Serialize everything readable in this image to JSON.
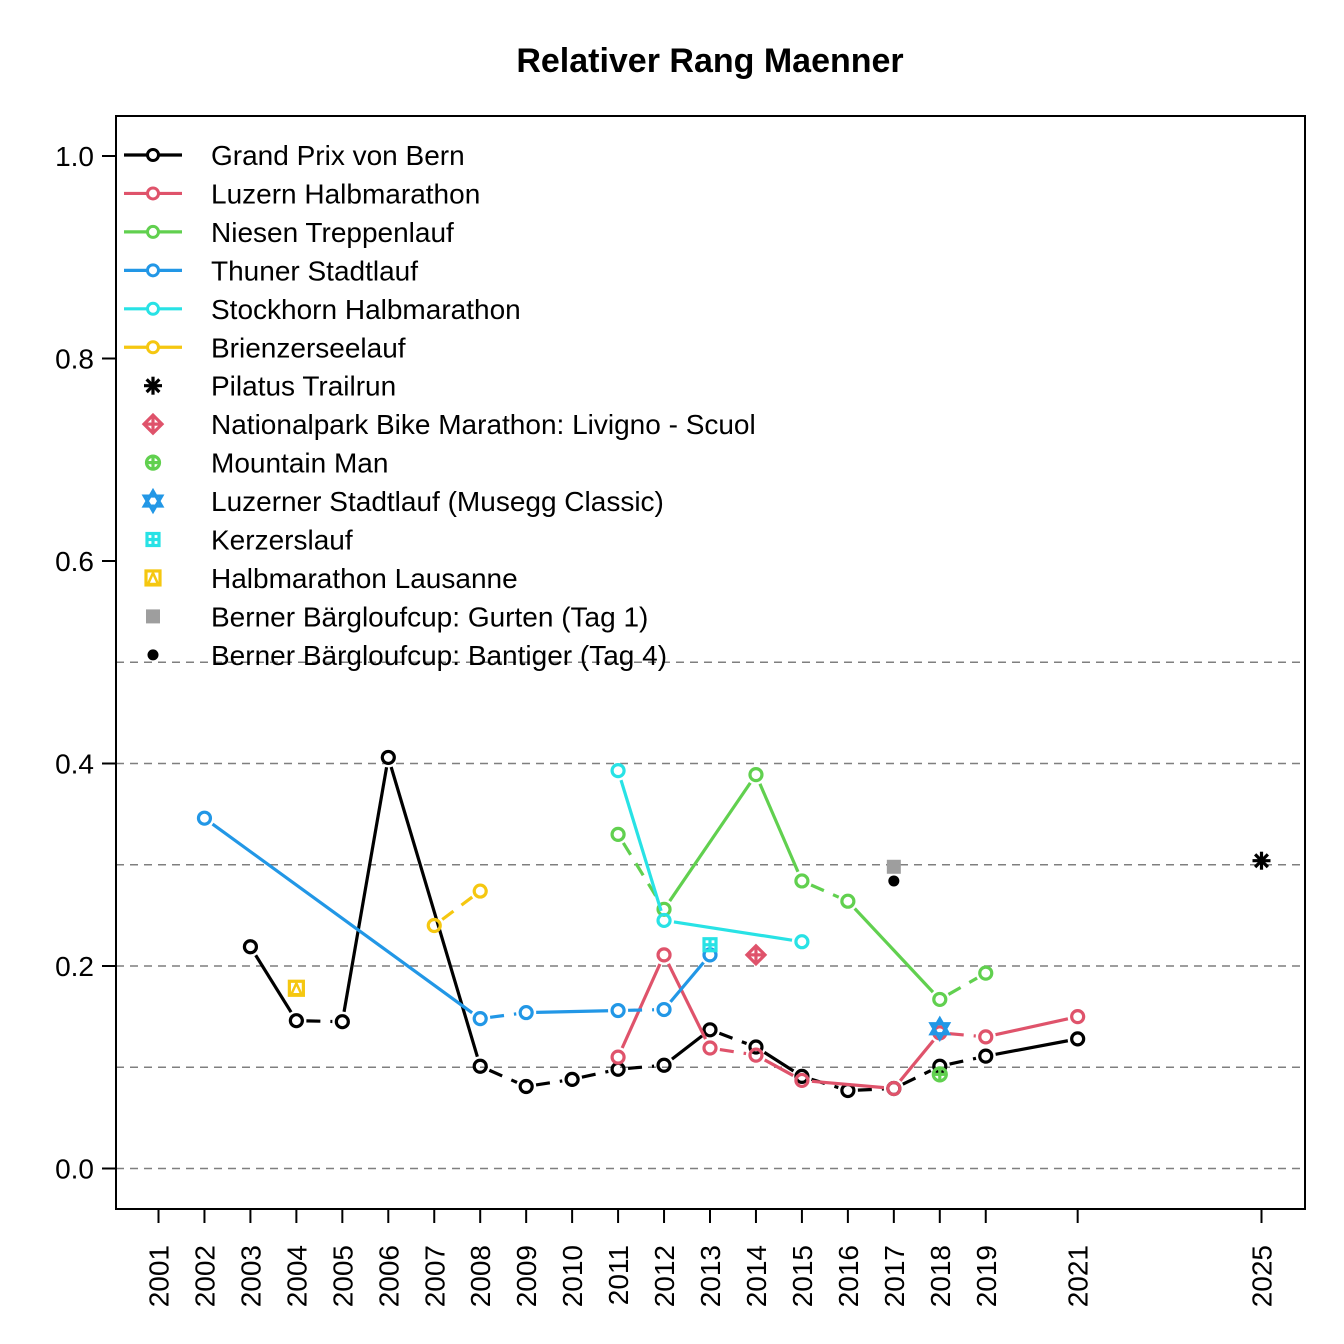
{
  "chart_data": {
    "type": "line",
    "title": "Relativer Rang Maenner",
    "xlabel": "",
    "ylabel": "",
    "ylim": [
      -0.03,
      1.05
    ],
    "y_ticks": [
      0.0,
      0.2,
      0.4,
      0.6,
      0.8,
      1.0
    ],
    "y_tick_labels": [
      "0.0",
      "0.2",
      "0.4",
      "0.6",
      "0.8",
      "1.0"
    ],
    "x_ticks": [
      2001,
      2002,
      2003,
      2004,
      2005,
      2006,
      2007,
      2008,
      2009,
      2010,
      2011,
      2012,
      2013,
      2014,
      2015,
      2016,
      2017,
      2018,
      2019,
      2021,
      2025
    ],
    "xlim": [
      2000.05,
      2026
    ],
    "gridlines_y": [
      0.0,
      0.1,
      0.2,
      0.3,
      0.4,
      0.5
    ],
    "legend_position": "top-left",
    "series": [
      {
        "name": "Grand Prix von Bern",
        "color": "#000000",
        "marker": "circle-open",
        "points": [
          [
            2003,
            0.219
          ],
          [
            2004,
            0.146
          ],
          [
            2005,
            0.145
          ],
          [
            2006,
            0.406
          ],
          [
            2008,
            0.101
          ],
          [
            2009,
            0.081
          ],
          [
            2010,
            0.088
          ],
          [
            2011,
            0.098
          ],
          [
            2012,
            0.102
          ],
          [
            2013,
            0.137
          ],
          [
            2014,
            0.12
          ],
          [
            2015,
            0.091
          ],
          [
            2016,
            0.077
          ],
          [
            2017,
            0.079
          ],
          [
            2018,
            0.101
          ],
          [
            2019,
            0.111
          ],
          [
            2021,
            0.128
          ]
        ],
        "segments": [
          [
            2003,
            2004,
            "solid"
          ],
          [
            2004,
            2005,
            "dashed"
          ],
          [
            2005,
            2006,
            "solid"
          ],
          [
            2006,
            2008,
            "solid"
          ],
          [
            2008,
            2009,
            "dashed"
          ],
          [
            2009,
            2010,
            "dashed"
          ],
          [
            2010,
            2011,
            "dashed"
          ],
          [
            2011,
            2012,
            "dashed"
          ],
          [
            2012,
            2013,
            "solid"
          ],
          [
            2013,
            2014,
            "dashed"
          ],
          [
            2014,
            2015,
            "solid"
          ],
          [
            2015,
            2016,
            "dashed"
          ],
          [
            2016,
            2017,
            "dashed"
          ],
          [
            2017,
            2018,
            "dashed"
          ],
          [
            2018,
            2019,
            "dashed"
          ],
          [
            2019,
            2021,
            "solid"
          ]
        ]
      },
      {
        "name": "Luzern Halbmarathon",
        "color": "#DF536B",
        "marker": "circle-open",
        "points": [
          [
            2011,
            0.11
          ],
          [
            2012,
            0.211
          ],
          [
            2013,
            0.119
          ],
          [
            2014,
            0.112
          ],
          [
            2015,
            0.087
          ],
          [
            2017,
            0.079
          ],
          [
            2018,
            0.134
          ],
          [
            2019,
            0.13
          ],
          [
            2021,
            0.15
          ]
        ],
        "segments": [
          [
            2011,
            2012,
            "solid"
          ],
          [
            2012,
            2013,
            "solid"
          ],
          [
            2013,
            2014,
            "dashed"
          ],
          [
            2014,
            2015,
            "solid"
          ],
          [
            2015,
            2017,
            "solid"
          ],
          [
            2017,
            2018,
            "solid"
          ],
          [
            2018,
            2019,
            "dashed"
          ],
          [
            2019,
            2021,
            "solid"
          ]
        ]
      },
      {
        "name": "Niesen Treppenlauf",
        "color": "#61D04F",
        "marker": "circle-open",
        "points": [
          [
            2011,
            0.33
          ],
          [
            2012,
            0.256
          ],
          [
            2014,
            0.389
          ],
          [
            2015,
            0.284
          ],
          [
            2016,
            0.264
          ],
          [
            2018,
            0.167
          ],
          [
            2019,
            0.193
          ]
        ],
        "segments": [
          [
            2011,
            2012,
            "dashed"
          ],
          [
            2012,
            2014,
            "solid"
          ],
          [
            2014,
            2015,
            "solid"
          ],
          [
            2015,
            2016,
            "dashed"
          ],
          [
            2016,
            2018,
            "solid"
          ],
          [
            2018,
            2019,
            "dashed"
          ]
        ]
      },
      {
        "name": "Thuner Stadtlauf",
        "color": "#2297E6",
        "marker": "circle-open",
        "points": [
          [
            2002,
            0.346
          ],
          [
            2008,
            0.148
          ],
          [
            2009,
            0.154
          ],
          [
            2011,
            0.156
          ],
          [
            2012,
            0.157
          ],
          [
            2013,
            0.211
          ]
        ],
        "segments": [
          [
            2002,
            2008,
            "solid"
          ],
          [
            2008,
            2009,
            "dashed"
          ],
          [
            2009,
            2011,
            "solid"
          ],
          [
            2011,
            2012,
            "dashed"
          ],
          [
            2012,
            2013,
            "solid"
          ]
        ]
      },
      {
        "name": "Stockhorn Halbmarathon",
        "color": "#28E2E5",
        "marker": "circle-open",
        "points": [
          [
            2011,
            0.393
          ],
          [
            2012,
            0.245
          ],
          [
            2015,
            0.224
          ]
        ],
        "segments": [
          [
            2011,
            2012,
            "solid"
          ],
          [
            2012,
            2015,
            "solid"
          ]
        ]
      },
      {
        "name": "Brienzerseelauf",
        "color": "#F5C710",
        "marker": "circle-open",
        "points": [
          [
            2007,
            0.24
          ],
          [
            2008,
            0.274
          ]
        ],
        "segments": [
          [
            2007,
            2008,
            "dashed"
          ]
        ]
      },
      {
        "name": "Pilatus Trailrun",
        "color": "#000000",
        "marker": "asterisk",
        "points": [
          [
            2025,
            0.304
          ]
        ],
        "segments": []
      },
      {
        "name": "Nationalpark Bike Marathon: Livigno - Scuol",
        "color": "#DF536B",
        "marker": "diamond-plus",
        "points": [
          [
            2014,
            0.211
          ]
        ],
        "segments": []
      },
      {
        "name": "Mountain Man",
        "color": "#61D04F",
        "marker": "circle-plus",
        "points": [
          [
            2018,
            0.093
          ]
        ],
        "segments": []
      },
      {
        "name": "Luzerner Stadtlauf (Musegg Classic)",
        "color": "#2297E6",
        "marker": "star-of-david",
        "points": [
          [
            2018,
            0.138
          ]
        ],
        "segments": []
      },
      {
        "name": "Kerzerslauf",
        "color": "#28E2E5",
        "marker": "square-plus",
        "points": [
          [
            2013,
            0.221
          ]
        ],
        "segments": []
      },
      {
        "name": "Halbmarathon Lausanne",
        "color": "#F5C710",
        "marker": "square-triangle",
        "points": [
          [
            2004,
            0.178
          ]
        ],
        "segments": []
      },
      {
        "name": "Berner Bärgloufcup: Gurten (Tag 1)",
        "color": "#9E9E9E",
        "marker": "square-filled",
        "points": [
          [
            2017,
            0.298
          ]
        ],
        "segments": []
      },
      {
        "name": "Berner Bärgloufcup: Bantiger (Tag 4)",
        "color": "#000000",
        "marker": "dot-filled",
        "points": [
          [
            2017,
            0.284
          ]
        ],
        "segments": []
      }
    ]
  }
}
